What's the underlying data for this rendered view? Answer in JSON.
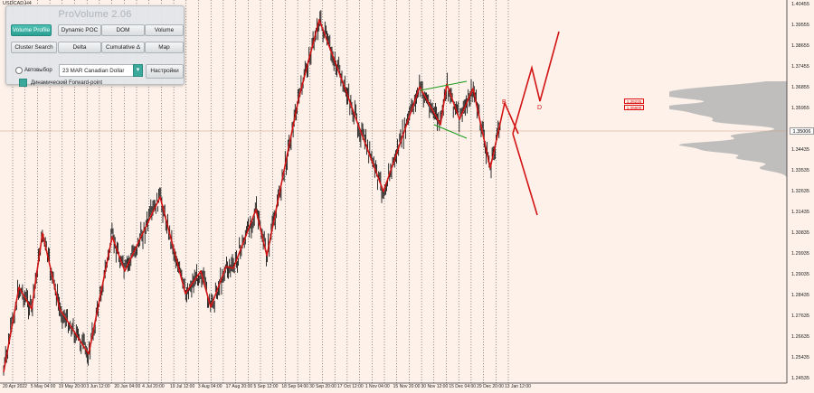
{
  "chart": {
    "symbol": "USDCAD,H4",
    "current_price": "1.35006",
    "price_labels": [
      "1.40455",
      "1.39555",
      "1.38655",
      "1.37455",
      "1.36855",
      "1.35955",
      "1.35006",
      "1.34435",
      "1.33535",
      "1.32635",
      "1.31435",
      "1.30835",
      "1.29935",
      "1.29035",
      "1.28435",
      "1.27635",
      "1.26635",
      "1.25435",
      "1.24535"
    ],
    "date_labels": [
      "20 Apr 2022",
      "5 May 04:00",
      "19 May 20:00",
      "3 Jun 12:00",
      "20 Jun 04:00",
      "4 Jul 20:00",
      "19 Jul 12:00",
      "3 Aug 04:00",
      "17 Aug 20:00",
      "5 Sep 12:00",
      "18 Sep 04:00",
      "30 Sep 20:00",
      "17 Oct 12:00",
      "1 Nov 04:00",
      "15 Nov 20:00",
      "30 Nov 12:00",
      "15 Dec 04:00",
      "29 Dec 20:00",
      "13 Jan 12:00"
    ],
    "poc_labels": [
      "1.36235",
      "1.35900"
    ],
    "wave_labels": [
      "B",
      "D"
    ],
    "colors": {
      "background": "#fdf1ea",
      "candles": "#000000",
      "zigzag": "#d21414",
      "triangle": "#1a9a1a",
      "profile": "#b5b5b5",
      "grid": "#3c3c3c"
    }
  },
  "panel": {
    "title": "ProVolume 2.06",
    "buttons": [
      {
        "label": "Volume Profile",
        "active": true
      },
      {
        "label": "Dynamic POC",
        "active": false
      },
      {
        "label": "DOM",
        "active": false
      },
      {
        "label": "Volume",
        "active": false
      },
      {
        "label": "Cluster Search",
        "active": false
      },
      {
        "label": "Delta",
        "active": false
      },
      {
        "label": "Cumulative Δ",
        "active": false
      },
      {
        "label": "Map",
        "active": false
      }
    ],
    "auto_label": "Автовыбор",
    "instrument_value": "23 MAR Canadian Dollar",
    "settings_label": "Настройки",
    "forward_label": "Динамический Forward-point"
  }
}
